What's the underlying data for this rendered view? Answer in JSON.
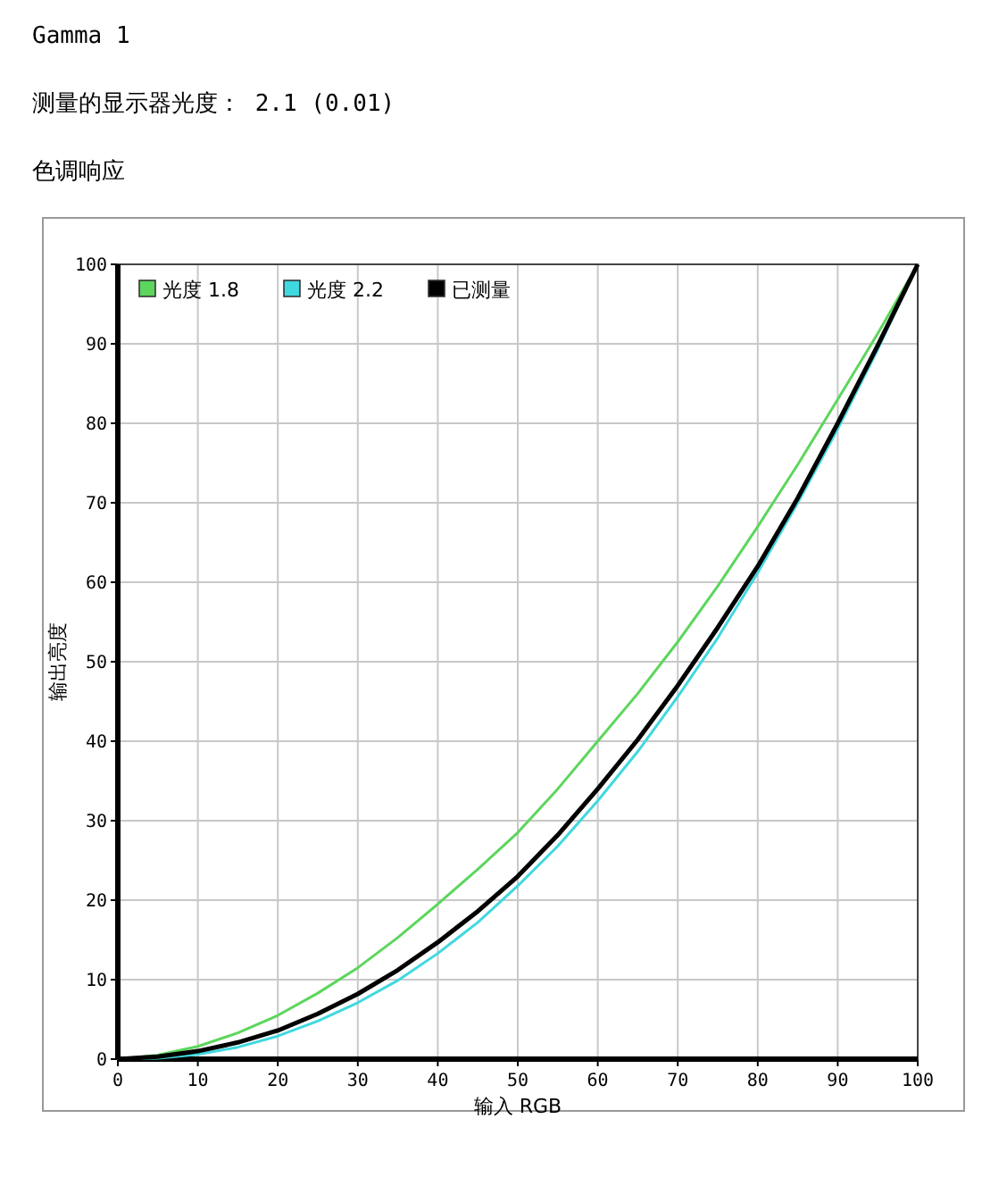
{
  "chart_data": {
    "type": "line",
    "title": "Gamma 1",
    "subtitle": "测量的显示器光度： 2.1 (0.01)",
    "annotations": [
      "色调响应"
    ],
    "xlabel": "输入 RGB",
    "ylabel": "输出亮度",
    "x": [
      0,
      5,
      10,
      15,
      20,
      25,
      30,
      35,
      40,
      45,
      50,
      55,
      60,
      65,
      70,
      75,
      80,
      85,
      90,
      95,
      100
    ],
    "series": [
      {
        "name": "光度 1.8",
        "color": "#5cd65c",
        "values": [
          0,
          0.5,
          1.6,
          3.3,
          5.5,
          8.3,
          11.5,
          15.3,
          19.5,
          23.9,
          28.5,
          34,
          40,
          46,
          52.5,
          59.5,
          67,
          74.8,
          83,
          91.3,
          100
        ]
      },
      {
        "name": "光度 2.2",
        "color": "#40d8e0",
        "values": [
          0,
          0.1,
          0.6,
          1.5,
          2.9,
          4.8,
          7.1,
          9.9,
          13.3,
          17.2,
          21.8,
          26.8,
          32.5,
          38.7,
          45.6,
          53,
          61.2,
          70,
          79.3,
          89.3,
          100
        ]
      },
      {
        "name": "已测量",
        "color": "#000000",
        "values": [
          0,
          0.3,
          1,
          2.1,
          3.6,
          5.7,
          8.2,
          11.2,
          14.7,
          18.6,
          23,
          28.2,
          34,
          40.2,
          47,
          54.3,
          62,
          70.6,
          80,
          89.8,
          100
        ]
      }
    ],
    "xlim": [
      0,
      100
    ],
    "ylim": [
      0,
      100
    ],
    "xticks": [
      0,
      10,
      20,
      30,
      40,
      50,
      60,
      70,
      80,
      90,
      100
    ],
    "yticks": [
      0,
      10,
      20,
      30,
      40,
      50,
      60,
      70,
      80,
      90,
      100
    ],
    "grid": true,
    "legend": "top left",
    "marker": "none",
    "line_style": "solid"
  }
}
